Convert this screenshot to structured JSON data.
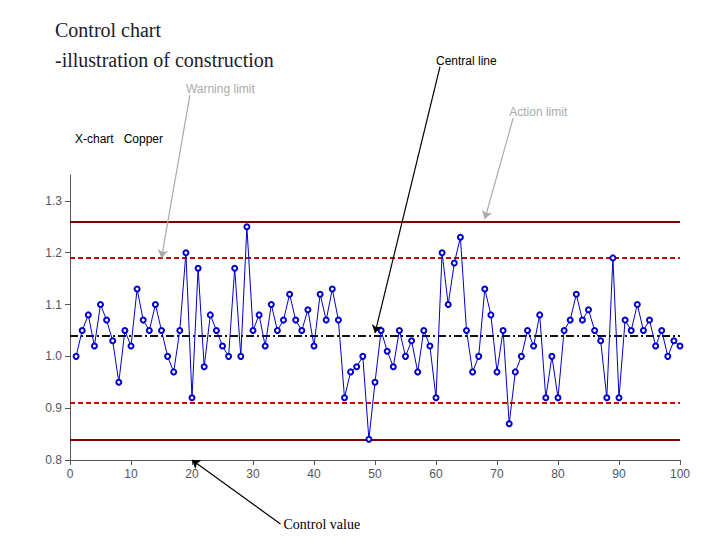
{
  "chart_data": {
    "type": "line",
    "title": [
      "Control chart",
      "-illustration of construction"
    ],
    "subtitle": "X-chart   Copper",
    "x": [
      1,
      2,
      3,
      4,
      5,
      6,
      7,
      8,
      9,
      10,
      11,
      12,
      13,
      14,
      15,
      16,
      17,
      18,
      19,
      20,
      21,
      22,
      23,
      24,
      25,
      26,
      27,
      28,
      29,
      30,
      31,
      32,
      33,
      34,
      35,
      36,
      37,
      38,
      39,
      40,
      41,
      42,
      43,
      44,
      45,
      46,
      47,
      48,
      49,
      50,
      51,
      52,
      53,
      54,
      55,
      56,
      57,
      58,
      59,
      60,
      61,
      62,
      63,
      64,
      65,
      66,
      67,
      68,
      69,
      70,
      71,
      72,
      73,
      74,
      75,
      76,
      77,
      78,
      79,
      80,
      81,
      82,
      83,
      84,
      85,
      86,
      87,
      88,
      89,
      90,
      91,
      92,
      93,
      94,
      95,
      96,
      97,
      98,
      99,
      100
    ],
    "values": [
      1.0,
      1.05,
      1.08,
      1.02,
      1.1,
      1.07,
      1.03,
      0.95,
      1.05,
      1.02,
      1.13,
      1.07,
      1.05,
      1.1,
      1.05,
      1.0,
      0.97,
      1.05,
      1.2,
      0.92,
      1.17,
      0.98,
      1.08,
      1.05,
      1.02,
      1.0,
      1.17,
      1.0,
      1.25,
      1.05,
      1.08,
      1.02,
      1.1,
      1.05,
      1.07,
      1.12,
      1.07,
      1.05,
      1.09,
      1.02,
      1.12,
      1.07,
      1.13,
      1.07,
      0.92,
      0.97,
      0.98,
      1.0,
      0.84,
      0.95,
      1.05,
      1.01,
      0.98,
      1.05,
      1.0,
      1.03,
      0.97,
      1.05,
      1.02,
      0.92,
      1.2,
      1.1,
      1.18,
      1.23,
      1.05,
      0.97,
      1.0,
      1.13,
      1.08,
      0.97,
      1.05,
      0.87,
      0.97,
      1.0,
      1.05,
      1.02,
      1.08,
      0.92,
      1.0,
      0.92,
      1.05,
      1.07,
      1.12,
      1.07,
      1.09,
      1.05,
      1.03,
      0.92,
      1.19,
      0.92,
      1.07,
      1.05,
      1.1,
      1.05,
      1.07,
      1.02,
      1.05,
      1.0,
      1.03,
      1.02
    ],
    "color": "#0000cc",
    "marker": "open_circle",
    "line_style": "solid",
    "hlines": [
      {
        "value": 1.265,
        "color": "#800000",
        "line_style": "solid"
      },
      {
        "value": 0.845,
        "color": "#800000",
        "line_style": "solid"
      },
      {
        "value": 1.19,
        "color": "#cc0000",
        "line_style": "dashed"
      },
      {
        "value": 0.91,
        "color": "#cc0000",
        "line_style": "dashed"
      },
      {
        "value": 1.045,
        "color": "#111111",
        "line_style": "dashdot"
      }
    ],
    "annotations": [
      {
        "text": "Central line",
        "x": 50,
        "y": 1.045,
        "color": "#000000"
      },
      {
        "text": "Warning limit",
        "x": 15,
        "y": 1.19,
        "color": "#aaaaaa"
      },
      {
        "text": "Action limit",
        "x": 68,
        "y": 1.265,
        "color": "#aaaaaa"
      },
      {
        "text": "Control value",
        "x": 20,
        "y": 0.8,
        "color": "#000000"
      }
    ],
    "xlim": [
      0,
      100
    ],
    "ylim": [
      0.8,
      1.35
    ],
    "xticks": [
      0,
      10,
      20,
      30,
      40,
      50,
      60,
      70,
      80,
      90,
      100
    ],
    "yticks": [
      0.8,
      0.9,
      {
        "value": 1.0,
        "label": "1.0"
      },
      1.1,
      1.2,
      1.3
    ],
    "grid": false
  }
}
